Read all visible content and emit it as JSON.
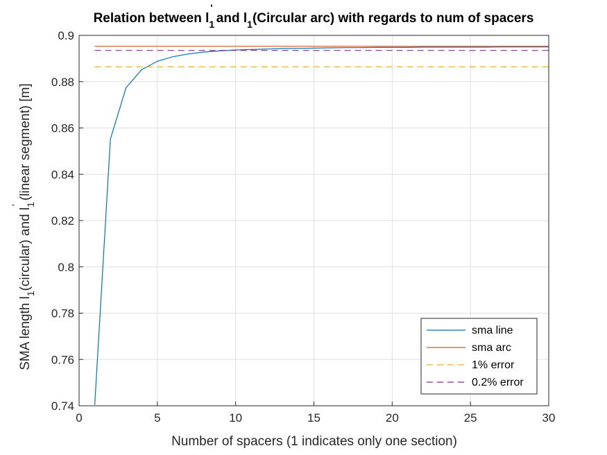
{
  "chart_data": {
    "type": "line",
    "title_parts": [
      "Relation between ",
      "l",
      "1",
      "'",
      " and ",
      "l",
      "1",
      "(Circular arc) with regards to num of spacers"
    ],
    "xlabel": "Number of spacers (1 indicates only one section)",
    "ylabel_parts": [
      "SMA length ",
      "l",
      "1",
      "(circular) and ",
      "l",
      "1",
      "'",
      " (linear segment) [m]"
    ],
    "xlim": [
      0,
      30
    ],
    "ylim": [
      0.74,
      0.9
    ],
    "xticks": [
      0,
      5,
      10,
      15,
      20,
      25,
      30
    ],
    "xtick_labels": [
      "0",
      "5",
      "10",
      "15",
      "20",
      "25",
      "30"
    ],
    "yticks": [
      0.74,
      0.76,
      0.78,
      0.8,
      0.82,
      0.84,
      0.86,
      0.88,
      0.9
    ],
    "ytick_labels": [
      "0.74",
      "0.76",
      "0.78",
      "0.8",
      "0.82",
      "0.84",
      "0.86",
      "0.88",
      "0.9"
    ],
    "grid": true,
    "legend_position": "bottom-right",
    "series": [
      {
        "name": "sma line",
        "color": "#0072BD",
        "style": "solid",
        "x": [
          1,
          2,
          3,
          4,
          5,
          6,
          7,
          8,
          9,
          10,
          11,
          12,
          13,
          14,
          15,
          16,
          17,
          18,
          19,
          20,
          21,
          22,
          23,
          24,
          25,
          26,
          27,
          28,
          29,
          30
        ],
        "y": [
          0.7404,
          0.8552,
          0.8774,
          0.8852,
          0.8888,
          0.8908,
          0.892,
          0.8928,
          0.8933,
          0.8937,
          0.8939,
          0.8941,
          0.8943,
          0.8944,
          0.8945,
          0.8946,
          0.8947,
          0.8947,
          0.8948,
          0.8948,
          0.8948,
          0.8949,
          0.8949,
          0.8949,
          0.8949,
          0.8949,
          0.895,
          0.895,
          0.895,
          0.895
        ]
      },
      {
        "name": "sma arc",
        "color": "#D95319",
        "style": "solid",
        "x": [
          1,
          30
        ],
        "y": [
          0.8953,
          0.8953
        ]
      },
      {
        "name": "1% error",
        "color": "#EDB120",
        "style": "dashed",
        "x": [
          1,
          30
        ],
        "y": [
          0.8864,
          0.8864
        ]
      },
      {
        "name": "0.2% error",
        "color": "#7E2F8E",
        "style": "dashed",
        "x": [
          1,
          30
        ],
        "y": [
          0.8935,
          0.8935
        ]
      }
    ]
  }
}
